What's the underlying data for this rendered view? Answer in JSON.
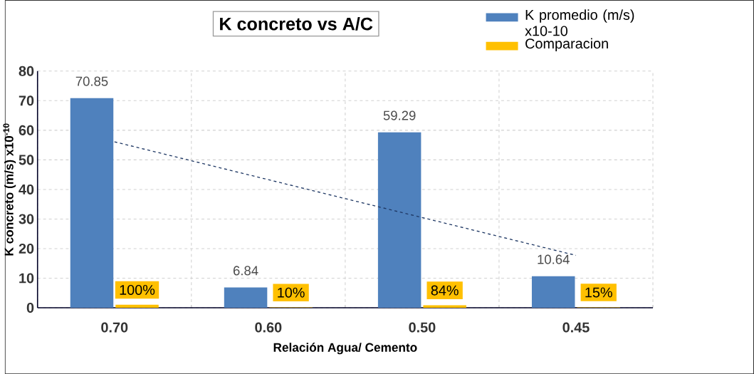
{
  "chart_data": {
    "type": "bar",
    "title": "K  concreto vs A/C",
    "xlabel": "Relación Agua/ Cemento",
    "ylabel": "K concreto (m/s) x10$^{-10}$",
    "categories": [
      "0.70",
      "0.60",
      "0.50",
      "0.45"
    ],
    "series": [
      {
        "name": "K promedio (m/s) x10-10",
        "color": "#4f81bd",
        "values": [
          70.85,
          6.84,
          59.29,
          10.64
        ],
        "value_labels": [
          "70.85",
          "6.84",
          "59.29",
          "10.64"
        ]
      },
      {
        "name": "Comparacion",
        "color": "#ffc000",
        "values": [
          1,
          0.1,
          0.84,
          0.15
        ],
        "value_labels": [
          "100%",
          "10%",
          "84%",
          "15%"
        ]
      },
      {
        "type": "line",
        "color": "#1f3864",
        "line_style": "dashed",
        "marker": "none",
        "values": [
          56.1,
          43.3,
          30.5,
          17.7
        ]
      }
    ],
    "ylim": [
      0,
      80
    ],
    "yticks": [
      0,
      10,
      20,
      30,
      40,
      50,
      60,
      70,
      80
    ],
    "grid": true,
    "legend": "top right"
  }
}
